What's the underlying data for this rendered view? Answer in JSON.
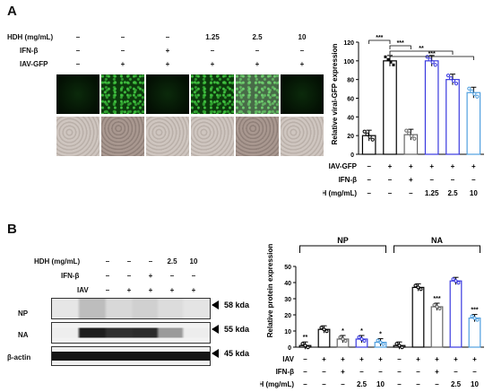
{
  "panel_a": {
    "letter": "A",
    "conditions": {
      "hdh_label": "HDH (mg/mL)",
      "ifn_label": "IFN-β",
      "iav_label": "IAV-GFP",
      "hdh": [
        "–",
        "–",
        "–",
        "1.25",
        "2.5",
        "10"
      ],
      "ifn": [
        "–",
        "–",
        "+",
        "–",
        "–",
        "–"
      ],
      "iav": [
        "–",
        "+",
        "+",
        "+",
        "+",
        "+"
      ]
    }
  },
  "panel_b": {
    "letter": "B",
    "conditions": {
      "hdh_label": "HDH (mg/mL)",
      "ifn_label": "IFN-β",
      "iav_label": "IAV",
      "hdh": [
        "–",
        "–",
        "–",
        "2.5",
        "10"
      ],
      "ifn": [
        "–",
        "–",
        "+",
        "–",
        "–"
      ],
      "iav": [
        "–",
        "+",
        "+",
        "+",
        "+"
      ]
    },
    "blots": [
      {
        "name": "NP",
        "size": "58 kda"
      },
      {
        "name": "NA",
        "size": "55 kda"
      },
      {
        "name": "β-actin",
        "size": "45 kda"
      }
    ]
  },
  "chart_data": [
    {
      "type": "bar",
      "ylabel": "Relative viral-GFP expression",
      "ylim": [
        0,
        120
      ],
      "yticks": [
        0,
        20,
        40,
        60,
        80,
        100,
        120
      ],
      "values": [
        20,
        100,
        21,
        100,
        80,
        66
      ],
      "colors": [
        "#000000",
        "#000000",
        "#666666",
        "#3a3adf",
        "#3a3adf",
        "#4f9fdf"
      ],
      "significance": [
        "***",
        "***",
        "**",
        "***"
      ],
      "row_labels": [
        "IAV-GFP",
        "IFN-β",
        "HDH (mg/mL)"
      ],
      "rows": [
        [
          "–",
          "+",
          "+",
          "+",
          "+",
          "+"
        ],
        [
          "–",
          "–",
          "+",
          "–",
          "–",
          "–"
        ],
        [
          "–",
          "–",
          "–",
          "1.25",
          "2.5",
          "10"
        ]
      ]
    },
    {
      "type": "bar",
      "ylabel": "Relative protein expression",
      "ylim": [
        0,
        50
      ],
      "yticks": [
        0,
        10,
        20,
        30,
        40,
        50
      ],
      "groups": [
        "NP",
        "NA"
      ],
      "series": [
        {
          "name": "NP",
          "values": [
            1,
            11,
            5,
            5,
            3
          ]
        },
        {
          "name": "NA",
          "values": [
            1,
            37,
            25,
            41,
            18
          ]
        }
      ],
      "colors": [
        "#000000",
        "#000000",
        "#666666",
        "#3a3adf",
        "#4f9fdf"
      ],
      "marks_np": [
        "**",
        "",
        "*",
        "*",
        "*"
      ],
      "marks_na": [
        "",
        "",
        "***",
        "",
        "***"
      ],
      "row_labels": [
        "IAV",
        "IFN-β",
        "HDH (mg/mL)"
      ],
      "rows": [
        [
          "–",
          "+",
          "+",
          "+",
          "+",
          "–",
          "+",
          "+",
          "+",
          "+"
        ],
        [
          "–",
          "–",
          "+",
          "–",
          "–",
          "–",
          "–",
          "+",
          "–",
          "–"
        ],
        [
          "–",
          "–",
          "–",
          "2.5",
          "10",
          "–",
          "–",
          "–",
          "2.5",
          "10"
        ]
      ]
    }
  ]
}
